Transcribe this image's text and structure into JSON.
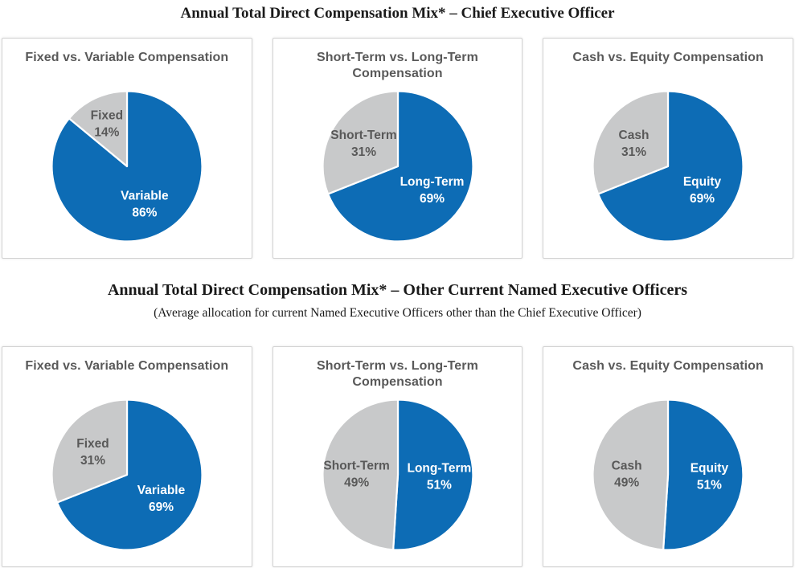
{
  "format": {
    "value_suffix": "%"
  },
  "colors": {
    "blue": "#0d6cb5",
    "gray": "#c8c9ca",
    "label_on_gray": "#595959",
    "label_on_blue": "#ffffff",
    "panel_title": "#595959",
    "heading_text": "#1a1a1a",
    "panel_border": "#d2d2d2",
    "slice_separator": "#ffffff",
    "background": "#ffffff"
  },
  "sections": [
    {
      "heading": "Annual Total Direct Compensation Mix* – Chief Executive Officer",
      "chart_indexes": [
        0,
        1,
        2
      ]
    },
    {
      "heading": "Annual Total Direct Compensation Mix* – Other Current Named Executive Officers",
      "subheading": "(Average allocation for current Named Executive Officers other than the Chief Executive Officer)",
      "chart_indexes": [
        3,
        4,
        5
      ]
    }
  ],
  "chart_data": [
    {
      "type": "pie",
      "title": "Fixed vs. Variable Compensation",
      "title_lines": [
        "Fixed vs. Variable Compensation"
      ],
      "start_angle_deg": 0,
      "direction": "clockwise",
      "slices": [
        {
          "label": "Variable",
          "value": 86,
          "color_key": "blue",
          "label_color_key": "label_on_blue"
        },
        {
          "label": "Fixed",
          "value": 14,
          "color_key": "gray",
          "label_color_key": "label_on_gray"
        }
      ]
    },
    {
      "type": "pie",
      "title": "Short-Term vs. Long-Term Compensation",
      "title_lines": [
        "Short-Term vs. Long-Term",
        "Compensation"
      ],
      "start_angle_deg": 0,
      "direction": "clockwise",
      "slices": [
        {
          "label": "Long-Term",
          "value": 69,
          "color_key": "blue",
          "label_color_key": "label_on_blue"
        },
        {
          "label": "Short-Term",
          "value": 31,
          "color_key": "gray",
          "label_color_key": "label_on_gray"
        }
      ]
    },
    {
      "type": "pie",
      "title": "Cash vs. Equity Compensation",
      "title_lines": [
        "Cash vs. Equity Compensation"
      ],
      "start_angle_deg": 0,
      "direction": "clockwise",
      "slices": [
        {
          "label": "Equity",
          "value": 69,
          "color_key": "blue",
          "label_color_key": "label_on_blue"
        },
        {
          "label": "Cash",
          "value": 31,
          "color_key": "gray",
          "label_color_key": "label_on_gray"
        }
      ]
    },
    {
      "type": "pie",
      "title": "Fixed vs. Variable Compensation",
      "title_lines": [
        "Fixed vs. Variable Compensation"
      ],
      "start_angle_deg": 0,
      "direction": "clockwise",
      "slices": [
        {
          "label": "Variable",
          "value": 69,
          "color_key": "blue",
          "label_color_key": "label_on_blue"
        },
        {
          "label": "Fixed",
          "value": 31,
          "color_key": "gray",
          "label_color_key": "label_on_gray"
        }
      ]
    },
    {
      "type": "pie",
      "title": "Short-Term vs. Long-Term Compensation",
      "title_lines": [
        "Short-Term vs. Long-Term",
        "Compensation"
      ],
      "start_angle_deg": 0,
      "direction": "clockwise",
      "slices": [
        {
          "label": "Long-Term",
          "value": 51,
          "color_key": "blue",
          "label_color_key": "label_on_blue"
        },
        {
          "label": "Short-Term",
          "value": 49,
          "color_key": "gray",
          "label_color_key": "label_on_gray"
        }
      ]
    },
    {
      "type": "pie",
      "title": "Cash vs. Equity Compensation",
      "title_lines": [
        "Cash vs. Equity Compensation"
      ],
      "start_angle_deg": 0,
      "direction": "clockwise",
      "slices": [
        {
          "label": "Equity",
          "value": 51,
          "color_key": "blue",
          "label_color_key": "label_on_blue"
        },
        {
          "label": "Cash",
          "value": 49,
          "color_key": "gray",
          "label_color_key": "label_on_gray"
        }
      ]
    }
  ]
}
